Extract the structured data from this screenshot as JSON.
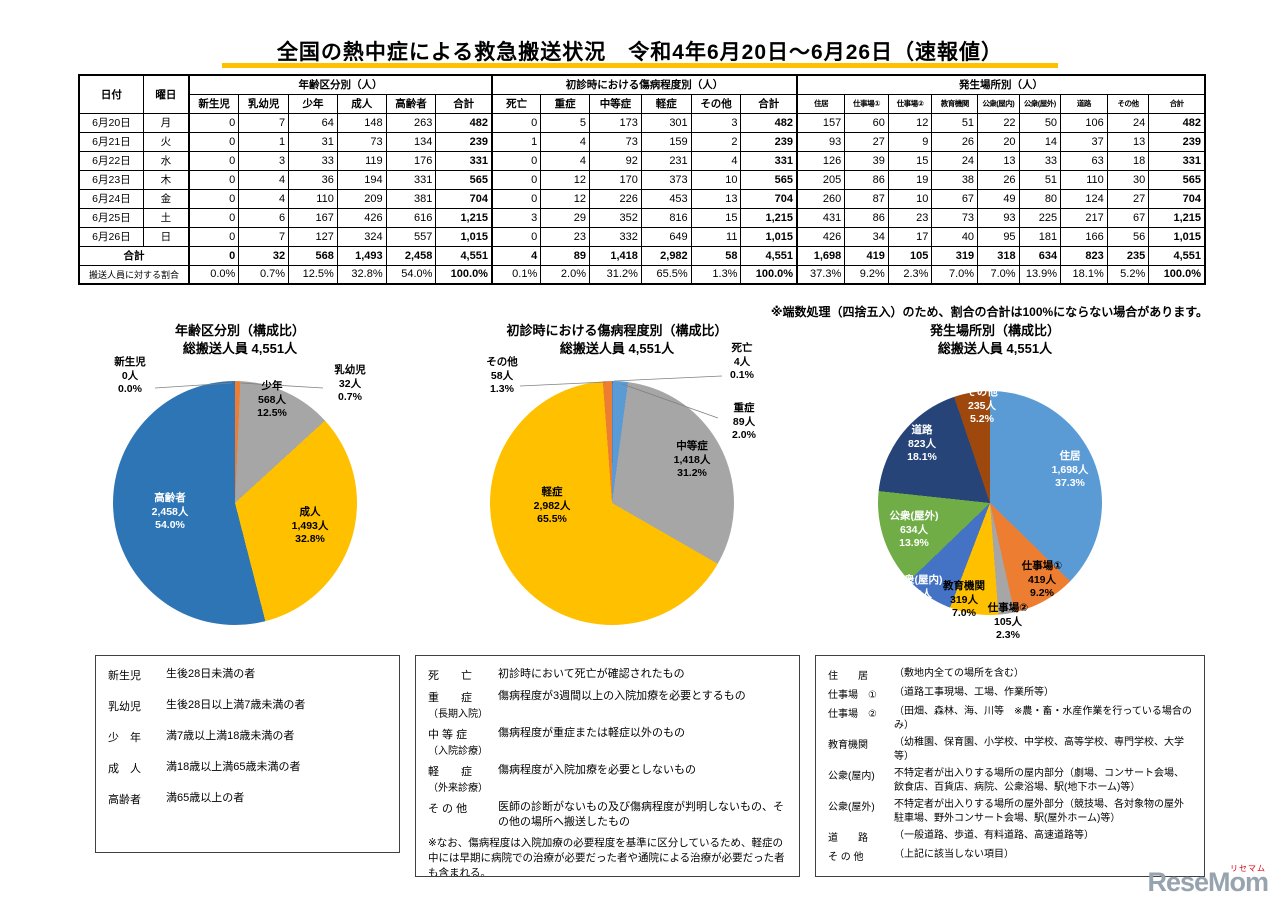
{
  "title": "全国の熱中症による救急搬送状況　令和4年6月20日～6月26日（速報値）",
  "note": "※端数処理（四捨五入）のため、割合の合計は100%にならない場合があります。",
  "table": {
    "headers": {
      "date": "日付",
      "day": "曜日",
      "group_age": "年齢区分別（人）",
      "group_severity": "初診時における傷病程度別（人）",
      "group_place": "発生場所別（人）",
      "age_cols": [
        "新生児",
        "乳幼児",
        "少年",
        "成人",
        "高齢者",
        "合計"
      ],
      "severity_cols": [
        "死亡",
        "重症",
        "中等症",
        "軽症",
        "その他",
        "合計"
      ],
      "place_cols": [
        "住居",
        "仕事場①",
        "仕事場②",
        "教育機関",
        "公衆(屋内)",
        "公衆(屋外)",
        "道路",
        "その他",
        "合計"
      ]
    },
    "rows": [
      {
        "date": "6月20日",
        "day": "月",
        "age": [
          "0",
          "7",
          "64",
          "148",
          "263",
          "482"
        ],
        "severity": [
          "0",
          "5",
          "173",
          "301",
          "3",
          "482"
        ],
        "place": [
          "157",
          "60",
          "12",
          "51",
          "22",
          "50",
          "106",
          "24",
          "482"
        ]
      },
      {
        "date": "6月21日",
        "day": "火",
        "age": [
          "0",
          "1",
          "31",
          "73",
          "134",
          "239"
        ],
        "severity": [
          "1",
          "4",
          "73",
          "159",
          "2",
          "239"
        ],
        "place": [
          "93",
          "27",
          "9",
          "26",
          "20",
          "14",
          "37",
          "13",
          "239"
        ]
      },
      {
        "date": "6月22日",
        "day": "水",
        "age": [
          "0",
          "3",
          "33",
          "119",
          "176",
          "331"
        ],
        "severity": [
          "0",
          "4",
          "92",
          "231",
          "4",
          "331"
        ],
        "place": [
          "126",
          "39",
          "15",
          "24",
          "13",
          "33",
          "63",
          "18",
          "331"
        ]
      },
      {
        "date": "6月23日",
        "day": "木",
        "age": [
          "0",
          "4",
          "36",
          "194",
          "331",
          "565"
        ],
        "severity": [
          "0",
          "12",
          "170",
          "373",
          "10",
          "565"
        ],
        "place": [
          "205",
          "86",
          "19",
          "38",
          "26",
          "51",
          "110",
          "30",
          "565"
        ]
      },
      {
        "date": "6月24日",
        "day": "金",
        "age": [
          "0",
          "4",
          "110",
          "209",
          "381",
          "704"
        ],
        "severity": [
          "0",
          "12",
          "226",
          "453",
          "13",
          "704"
        ],
        "place": [
          "260",
          "87",
          "10",
          "67",
          "49",
          "80",
          "124",
          "27",
          "704"
        ]
      },
      {
        "date": "6月25日",
        "day": "土",
        "age": [
          "0",
          "6",
          "167",
          "426",
          "616",
          "1,215"
        ],
        "severity": [
          "3",
          "29",
          "352",
          "816",
          "15",
          "1,215"
        ],
        "place": [
          "431",
          "86",
          "23",
          "73",
          "93",
          "225",
          "217",
          "67",
          "1,215"
        ]
      },
      {
        "date": "6月26日",
        "day": "日",
        "age": [
          "0",
          "7",
          "127",
          "324",
          "557",
          "1,015"
        ],
        "severity": [
          "0",
          "23",
          "332",
          "649",
          "11",
          "1,015"
        ],
        "place": [
          "426",
          "34",
          "17",
          "40",
          "95",
          "181",
          "166",
          "56",
          "1,015"
        ]
      }
    ],
    "total_row": {
      "label": "合計",
      "age": [
        "0",
        "32",
        "568",
        "1,493",
        "2,458",
        "4,551"
      ],
      "severity": [
        "4",
        "89",
        "1,418",
        "2,982",
        "58",
        "4,551"
      ],
      "place": [
        "1,698",
        "419",
        "105",
        "319",
        "318",
        "634",
        "823",
        "235",
        "4,551"
      ]
    },
    "ratio_row": {
      "label": "搬送人員に対する割合",
      "age": [
        "0.0%",
        "0.7%",
        "12.5%",
        "32.8%",
        "54.0%",
        "100.0%"
      ],
      "severity": [
        "0.1%",
        "2.0%",
        "31.2%",
        "65.5%",
        "1.3%",
        "100.0%"
      ],
      "place": [
        "37.3%",
        "9.2%",
        "2.3%",
        "7.0%",
        "7.0%",
        "13.9%",
        "18.1%",
        "5.2%",
        "100.0%"
      ]
    }
  },
  "chart_data": [
    {
      "type": "pie",
      "title": "年齢区分別（構成比）",
      "subtitle": "総搬送人員 4,551人",
      "legend_position": "none",
      "slices": [
        {
          "label": "新生児",
          "count": "0人",
          "pct": 0.0,
          "pct_text": "0.0%",
          "color": "#4472C4"
        },
        {
          "label": "乳幼児",
          "count": "32人",
          "pct": 0.7,
          "pct_text": "0.7%",
          "color": "#ED7D31"
        },
        {
          "label": "少年",
          "count": "568人",
          "pct": 12.5,
          "pct_text": "12.5%",
          "color": "#A6A6A6"
        },
        {
          "label": "成人",
          "count": "1,493人",
          "pct": 32.8,
          "pct_text": "32.8%",
          "color": "#FFC000"
        },
        {
          "label": "高齢者",
          "count": "2,458人",
          "pct": 54.0,
          "pct_text": "54.0%",
          "color": "#2E75B6"
        }
      ]
    },
    {
      "type": "pie",
      "title": "初診時における傷病程度別（構成比）",
      "subtitle": "総搬送人員 4,551人",
      "legend_position": "none",
      "slices": [
        {
          "label": "死亡",
          "count": "4人",
          "pct": 0.1,
          "pct_text": "0.1%",
          "color": "#4472C4"
        },
        {
          "label": "重症",
          "count": "89人",
          "pct": 2.0,
          "pct_text": "2.0%",
          "color": "#5B9BD5"
        },
        {
          "label": "中等症",
          "count": "1,418人",
          "pct": 31.2,
          "pct_text": "31.2%",
          "color": "#A6A6A6"
        },
        {
          "label": "軽症",
          "count": "2,982人",
          "pct": 65.5,
          "pct_text": "65.5%",
          "color": "#FFC000"
        },
        {
          "label": "その他",
          "count": "58人",
          "pct": 1.3,
          "pct_text": "1.3%",
          "color": "#ED7D31"
        }
      ]
    },
    {
      "type": "pie",
      "title": "発生場所別（構成比）",
      "subtitle": "総搬送人員 4,551人",
      "legend_position": "none",
      "slices": [
        {
          "label": "住居",
          "count": "1,698人",
          "pct": 37.3,
          "pct_text": "37.3%",
          "color": "#5B9BD5"
        },
        {
          "label": "仕事場①",
          "count": "419人",
          "pct": 9.2,
          "pct_text": "9.2%",
          "color": "#ED7D31"
        },
        {
          "label": "仕事場②",
          "count": "105人",
          "pct": 2.3,
          "pct_text": "2.3%",
          "color": "#A6A6A6"
        },
        {
          "label": "教育機関",
          "count": "319人",
          "pct": 7.0,
          "pct_text": "7.0%",
          "color": "#FFC000"
        },
        {
          "label": "公衆(屋内)",
          "count": "318人",
          "pct": 7.0,
          "pct_text": "7.0%",
          "color": "#4472C4"
        },
        {
          "label": "公衆(屋外)",
          "count": "634人",
          "pct": 13.9,
          "pct_text": "13.9%",
          "color": "#70AD47"
        },
        {
          "label": "道路",
          "count": "823人",
          "pct": 18.1,
          "pct_text": "18.1%",
          "color": "#264478"
        },
        {
          "label": "その他",
          "count": "235人",
          "pct": 5.2,
          "pct_text": "5.2%",
          "color": "#9E480E"
        }
      ]
    }
  ],
  "definitions": [
    {
      "rows": [
        {
          "term": "新生児",
          "desc": "生後28日未満の者"
        },
        {
          "term": "乳幼児",
          "desc": "生後28日以上満7歳未満の者"
        },
        {
          "term": "少　年",
          "desc": "満7歳以上満18歳未満の者"
        },
        {
          "term": "成　人",
          "desc": "満18歳以上満65歳未満の者"
        },
        {
          "term": "高齢者",
          "desc": "満65歳以上の者"
        }
      ]
    },
    {
      "rows": [
        {
          "term": "死　　亡",
          "desc": "初診時において死亡が確認されたもの"
        },
        {
          "term": "重　　症",
          "term2": "（長期入院）",
          "desc": "傷病程度が3週間以上の入院加療を必要とするもの"
        },
        {
          "term": "中 等 症",
          "term2": "（入院診療）",
          "desc": "傷病程度が重症または軽症以外のもの"
        },
        {
          "term": "軽　　症",
          "term2": "（外来診療）",
          "desc": "傷病程度が入院加療を必要としないもの"
        },
        {
          "term": "そ の 他",
          "desc": "医師の診断がないもの及び傷病程度が判明しないもの、その他の場所へ搬送したもの"
        }
      ],
      "note": "※なお、傷病程度は入院加療の必要程度を基準に区分しているため、軽症の中には早期に病院での治療が必要だった者や通院による治療が必要だった者も含まれる。"
    },
    {
      "rows": [
        {
          "term": "住　　居",
          "desc": "（敷地内全ての場所を含む）"
        },
        {
          "term": "仕事場　①",
          "desc": "（道路工事現場、工場、作業所等）"
        },
        {
          "term": "仕事場　②",
          "desc": "（田畑、森林、海、川等　※農・畜・水産作業を行っている場合のみ）"
        },
        {
          "term": "教育機関",
          "desc": "（幼稚園、保育園、小学校、中学校、高等学校、専門学校、大学等）"
        },
        {
          "term": "公衆(屋内)",
          "desc": "不特定者が出入りする場所の屋内部分（劇場、コンサート会場、飲食店、百貨店、病院、公衆浴場、駅(地下ホーム)等）"
        },
        {
          "term": "公衆(屋外)",
          "desc": "不特定者が出入りする場所の屋外部分（競技場、各対象物の屋外駐車場、野外コンサート会場、駅(屋外ホーム)等）"
        },
        {
          "term": "道　　路",
          "desc": "（一般道路、歩道、有料道路、高速道路等）"
        },
        {
          "term": "そ の 他",
          "desc": "（上記に該当しない項目）"
        }
      ]
    }
  ],
  "logo": {
    "text": "ReseMom",
    "kana": "リセマム"
  }
}
